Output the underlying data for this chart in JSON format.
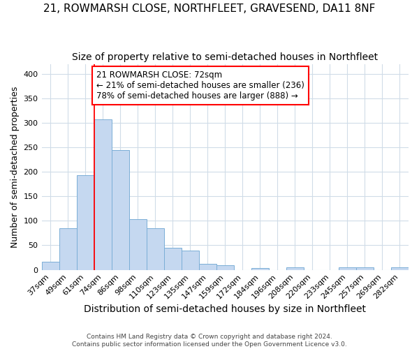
{
  "title": "21, ROWMARSH CLOSE, NORTHFLEET, GRAVESEND, DA11 8NF",
  "subtitle": "Size of property relative to semi-detached houses in Northfleet",
  "xlabel": "Distribution of semi-detached houses by size in Northfleet",
  "ylabel": "Number of semi-detached properties",
  "categories": [
    "37sqm",
    "49sqm",
    "61sqm",
    "74sqm",
    "86sqm",
    "98sqm",
    "110sqm",
    "123sqm",
    "135sqm",
    "147sqm",
    "159sqm",
    "172sqm",
    "184sqm",
    "196sqm",
    "208sqm",
    "220sqm",
    "233sqm",
    "245sqm",
    "257sqm",
    "269sqm",
    "282sqm"
  ],
  "values": [
    17,
    85,
    193,
    307,
    244,
    103,
    85,
    45,
    40,
    12,
    10,
    0,
    4,
    0,
    5,
    0,
    0,
    5,
    5,
    0,
    5
  ],
  "bar_color": "#c5d8f0",
  "bar_edge_color": "#7aaed6",
  "property_bin_index": 3,
  "annotation_text": "21 ROWMARSH CLOSE: 72sqm\n← 21% of semi-detached houses are smaller (236)\n78% of semi-detached houses are larger (888) →",
  "annotation_box_color": "white",
  "annotation_box_edge_color": "red",
  "vline_color": "red",
  "ylim": [
    0,
    420
  ],
  "yticks": [
    0,
    50,
    100,
    150,
    200,
    250,
    300,
    350,
    400
  ],
  "title_fontsize": 11,
  "subtitle_fontsize": 10,
  "xlabel_fontsize": 10,
  "ylabel_fontsize": 9,
  "tick_fontsize": 8,
  "annot_fontsize": 8.5,
  "footer_line1": "Contains HM Land Registry data © Crown copyright and database right 2024.",
  "footer_line2": "Contains public sector information licensed under the Open Government Licence v3.0.",
  "background_color": "#ffffff",
  "plot_background_color": "#ffffff",
  "grid_color": "#d0dce8",
  "bar_width": 1.0
}
